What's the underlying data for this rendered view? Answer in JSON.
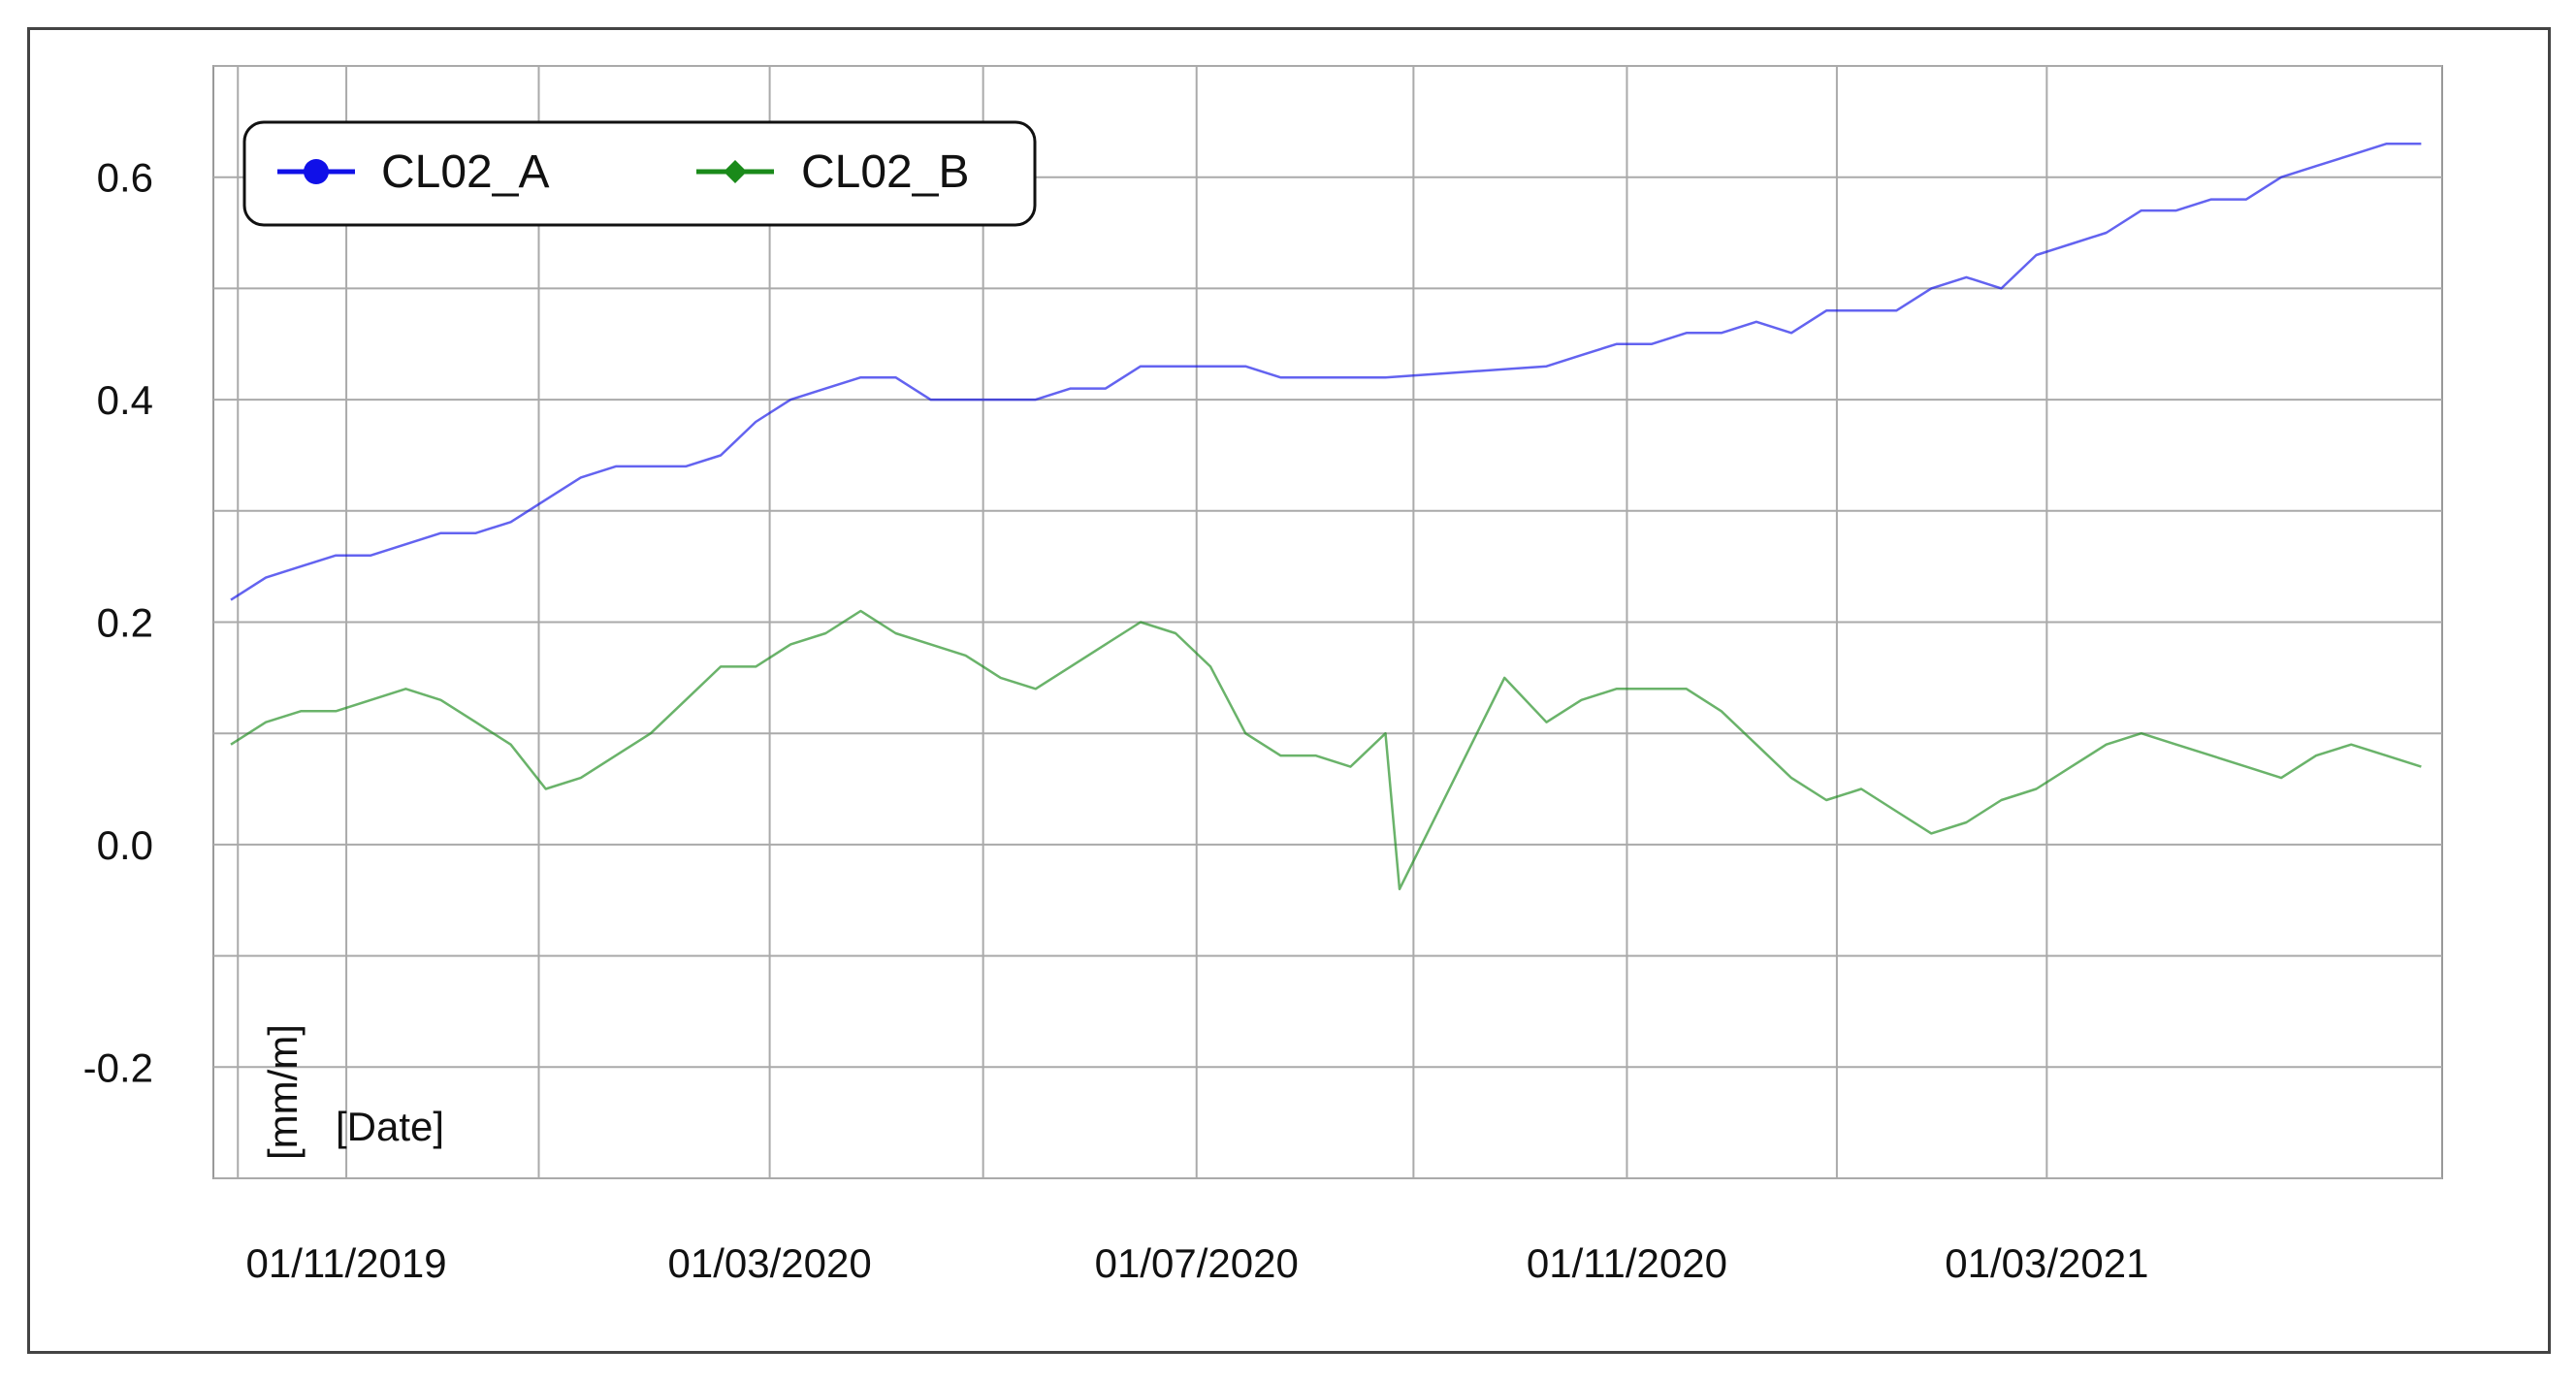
{
  "chart_data": {
    "type": "line",
    "title": "",
    "ylabel": "[mm/m]",
    "xlabel": "[Date]",
    "ylim": [
      -0.3,
      0.7
    ],
    "xlim": [
      "2019-09-24",
      "2021-06-22"
    ],
    "grid": true,
    "legend_position": "top-left",
    "yticks": [
      -0.2,
      0.0,
      0.2,
      0.4,
      0.6
    ],
    "ytick_labels": [
      "-0.2",
      "0.0",
      "0.2",
      "0.4",
      "0.6"
    ],
    "xtick_dates": [
      "2019-11-01",
      "2020-03-01",
      "2020-07-01",
      "2020-11-01",
      "2021-03-01"
    ],
    "xtick_labels": [
      "01/11/2019",
      "01/03/2020",
      "01/07/2020",
      "01/11/2020",
      "01/03/2021"
    ],
    "x_gridlines": [
      "2019-10-01",
      "2019-11-01",
      "2019-12-26",
      "2020-03-01",
      "2020-05-01",
      "2020-07-01",
      "2020-09-01",
      "2020-11-01",
      "2020-12-31",
      "2021-03-01"
    ],
    "y_gridlines": [
      -0.3,
      -0.2,
      -0.1,
      0.0,
      0.1,
      0.2,
      0.3,
      0.4,
      0.5,
      0.6,
      0.7
    ],
    "series": [
      {
        "name": "CL02_A",
        "color": "#1010e8",
        "marker": "circle",
        "x": [
          "2019-09-29",
          "2019-10-09",
          "2019-10-19",
          "2019-10-29",
          "2019-11-08",
          "2019-11-18",
          "2019-11-28",
          "2019-12-08",
          "2019-12-18",
          "2019-12-28",
          "2020-01-07",
          "2020-01-17",
          "2020-01-27",
          "2020-02-06",
          "2020-02-16",
          "2020-02-26",
          "2020-03-07",
          "2020-03-17",
          "2020-03-27",
          "2020-04-06",
          "2020-04-16",
          "2020-04-26",
          "2020-05-06",
          "2020-05-16",
          "2020-05-26",
          "2020-06-05",
          "2020-06-15",
          "2020-06-25",
          "2020-07-05",
          "2020-07-15",
          "2020-07-25",
          "2020-08-04",
          "2020-08-14",
          "2020-08-24",
          "2020-10-09",
          "2020-10-19",
          "2020-10-29",
          "2020-11-08",
          "2020-11-18",
          "2020-11-28",
          "2020-12-08",
          "2020-12-18",
          "2020-12-28",
          "2021-01-07",
          "2021-01-17",
          "2021-01-27",
          "2021-02-06",
          "2021-02-16",
          "2021-02-26",
          "2021-03-08",
          "2021-03-18",
          "2021-03-28",
          "2021-04-07",
          "2021-04-17",
          "2021-04-27",
          "2021-05-07",
          "2021-05-17",
          "2021-05-27",
          "2021-06-06",
          "2021-06-16"
        ],
        "values": [
          0.22,
          0.24,
          0.25,
          0.26,
          0.26,
          0.27,
          0.28,
          0.28,
          0.29,
          0.31,
          0.33,
          0.34,
          0.34,
          0.34,
          0.35,
          0.38,
          0.4,
          0.41,
          0.42,
          0.42,
          0.4,
          0.4,
          0.4,
          0.4,
          0.41,
          0.41,
          0.43,
          0.43,
          0.43,
          0.43,
          0.42,
          0.42,
          0.42,
          0.42,
          0.43,
          0.44,
          0.45,
          0.45,
          0.46,
          0.46,
          0.47,
          0.46,
          0.48,
          0.48,
          0.48,
          0.5,
          0.51,
          0.5,
          0.53,
          0.54,
          0.55,
          0.57,
          0.57,
          0.58,
          0.58,
          0.6,
          0.61,
          0.62,
          0.63,
          0.63
        ]
      },
      {
        "name": "CL02_B",
        "color": "#1a8a1a",
        "marker": "diamond",
        "x": [
          "2019-09-29",
          "2019-10-09",
          "2019-10-19",
          "2019-10-29",
          "2019-11-08",
          "2019-11-18",
          "2019-11-28",
          "2019-12-08",
          "2019-12-18",
          "2019-12-28",
          "2020-01-07",
          "2020-01-17",
          "2020-01-27",
          "2020-02-06",
          "2020-02-16",
          "2020-02-26",
          "2020-03-07",
          "2020-03-17",
          "2020-03-27",
          "2020-04-06",
          "2020-04-16",
          "2020-04-26",
          "2020-05-06",
          "2020-05-16",
          "2020-05-26",
          "2020-06-05",
          "2020-06-15",
          "2020-06-25",
          "2020-07-05",
          "2020-07-15",
          "2020-07-25",
          "2020-08-04",
          "2020-08-14",
          "2020-08-24",
          "2020-08-28",
          "2020-09-27",
          "2020-10-09",
          "2020-10-19",
          "2020-10-29",
          "2020-11-08",
          "2020-11-18",
          "2020-11-28",
          "2020-12-08",
          "2020-12-18",
          "2020-12-28",
          "2021-01-07",
          "2021-01-17",
          "2021-01-27",
          "2021-02-06",
          "2021-02-16",
          "2021-02-26",
          "2021-03-08",
          "2021-03-18",
          "2021-03-28",
          "2021-04-07",
          "2021-04-17",
          "2021-04-27",
          "2021-05-07",
          "2021-05-17",
          "2021-05-27",
          "2021-06-06",
          "2021-06-16"
        ],
        "values": [
          0.09,
          0.11,
          0.12,
          0.12,
          0.13,
          0.14,
          0.13,
          0.11,
          0.09,
          0.05,
          0.06,
          0.08,
          0.1,
          0.13,
          0.16,
          0.16,
          0.18,
          0.19,
          0.21,
          0.19,
          0.18,
          0.17,
          0.15,
          0.14,
          0.16,
          0.18,
          0.2,
          0.19,
          0.16,
          0.1,
          0.08,
          0.08,
          0.07,
          0.1,
          -0.04,
          0.15,
          0.11,
          0.13,
          0.14,
          0.14,
          0.14,
          0.12,
          0.09,
          0.06,
          0.04,
          0.05,
          0.03,
          0.01,
          0.02,
          0.04,
          0.05,
          0.07,
          0.09,
          0.1,
          0.09,
          0.08,
          0.07,
          0.06,
          0.08,
          0.09,
          0.08,
          0.07
        ]
      }
    ]
  }
}
